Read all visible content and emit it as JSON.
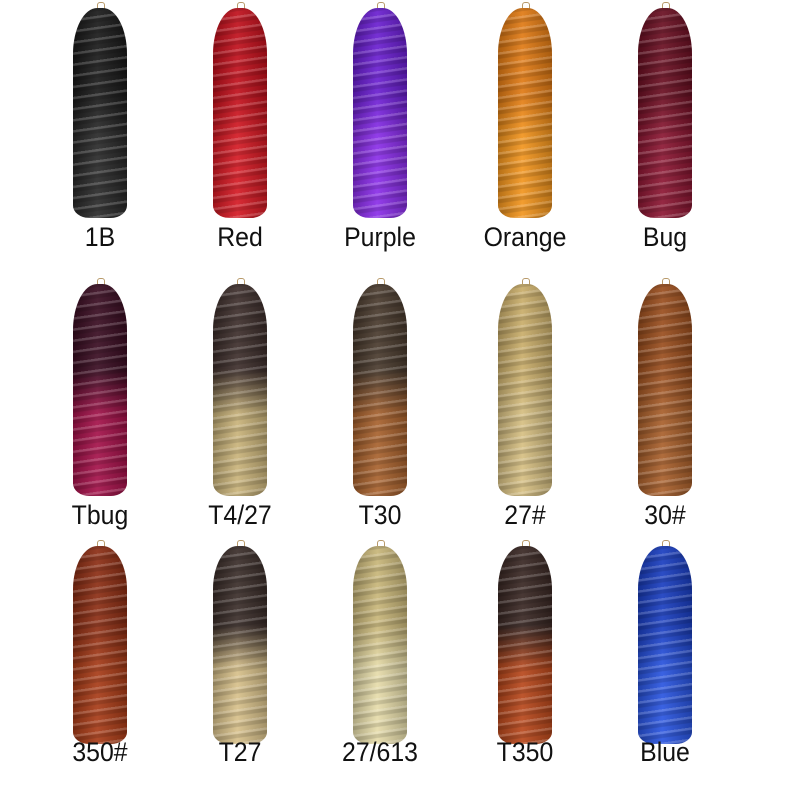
{
  "swatches": [
    {
      "label": "1B",
      "colors": [
        "#1a1a1a",
        "#2a2a2a"
      ]
    },
    {
      "label": "Red",
      "colors": [
        "#c0101c",
        "#d41a24"
      ]
    },
    {
      "label": "Purple",
      "colors": [
        "#6a1fd0",
        "#8a2ee8"
      ]
    },
    {
      "label": "Orange",
      "colors": [
        "#e07a14",
        "#f2951e"
      ]
    },
    {
      "label": "Bug",
      "colors": [
        "#6a0f22",
        "#8c1733"
      ]
    },
    {
      "label": "Tbug",
      "colors": [
        "#3a0d22",
        "#a4124a"
      ]
    },
    {
      "label": "T4/27",
      "colors": [
        "#3e2f2c",
        "#c9b37a"
      ]
    },
    {
      "label": "T30",
      "colors": [
        "#4a3b2e",
        "#a8622e"
      ]
    },
    {
      "label": "27#",
      "colors": [
        "#c9ad6a",
        "#d6bf82"
      ]
    },
    {
      "label": "30#",
      "colors": [
        "#9a4e1e",
        "#a9602c"
      ]
    },
    {
      "label": "350#",
      "colors": [
        "#8c2e14",
        "#a83c18"
      ]
    },
    {
      "label": "T27",
      "colors": [
        "#3b2e2a",
        "#d7c08a"
      ]
    },
    {
      "label": "27/613",
      "colors": [
        "#c8b679",
        "#e6dcaa"
      ]
    },
    {
      "label": "T350",
      "colors": [
        "#3a2824",
        "#b8481c"
      ]
    },
    {
      "label": "Blue",
      "colors": [
        "#1a3ec0",
        "#2a55e0"
      ]
    }
  ]
}
